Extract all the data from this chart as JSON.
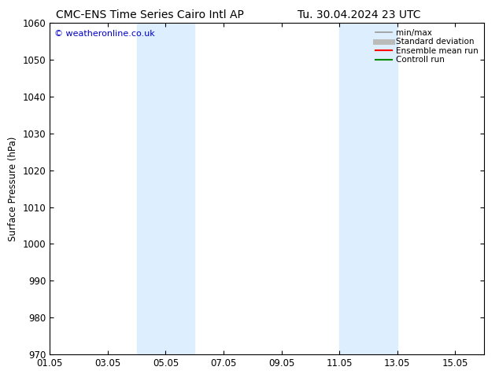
{
  "title_left": "CMC-ENS Time Series Cairo Intl AP",
  "title_right": "Tu. 30.04.2024 23 UTC",
  "ylabel": "Surface Pressure (hPa)",
  "xlim": [
    1.05,
    16.05
  ],
  "ylim": [
    970,
    1060
  ],
  "yticks": [
    970,
    980,
    990,
    1000,
    1010,
    1020,
    1030,
    1040,
    1050,
    1060
  ],
  "xtick_labels": [
    "01.05",
    "03.05",
    "05.05",
    "07.05",
    "09.05",
    "11.05",
    "13.05",
    "15.05"
  ],
  "xtick_positions": [
    1.05,
    3.05,
    5.05,
    7.05,
    9.05,
    11.05,
    13.05,
    15.05
  ],
  "bg_color": "#ffffff",
  "plot_bg_color": "#ffffff",
  "shaded_bands": [
    {
      "xmin": 4.05,
      "xmax": 6.05
    },
    {
      "xmin": 11.05,
      "xmax": 13.05
    }
  ],
  "shade_color": "#ddeeff",
  "watermark_text": "© weatheronline.co.uk",
  "watermark_color": "#0000cc",
  "legend_entries": [
    {
      "label": "min/max",
      "color": "#999999",
      "lw": 1.2,
      "style": "-"
    },
    {
      "label": "Standard deviation",
      "color": "#bbbbbb",
      "lw": 5,
      "style": "-"
    },
    {
      "label": "Ensemble mean run",
      "color": "#ff0000",
      "lw": 1.5,
      "style": "-"
    },
    {
      "label": "Controll run",
      "color": "#008800",
      "lw": 1.5,
      "style": "-"
    }
  ],
  "title_fontsize": 10,
  "axis_label_fontsize": 8.5,
  "tick_fontsize": 8.5,
  "legend_fontsize": 7.5
}
